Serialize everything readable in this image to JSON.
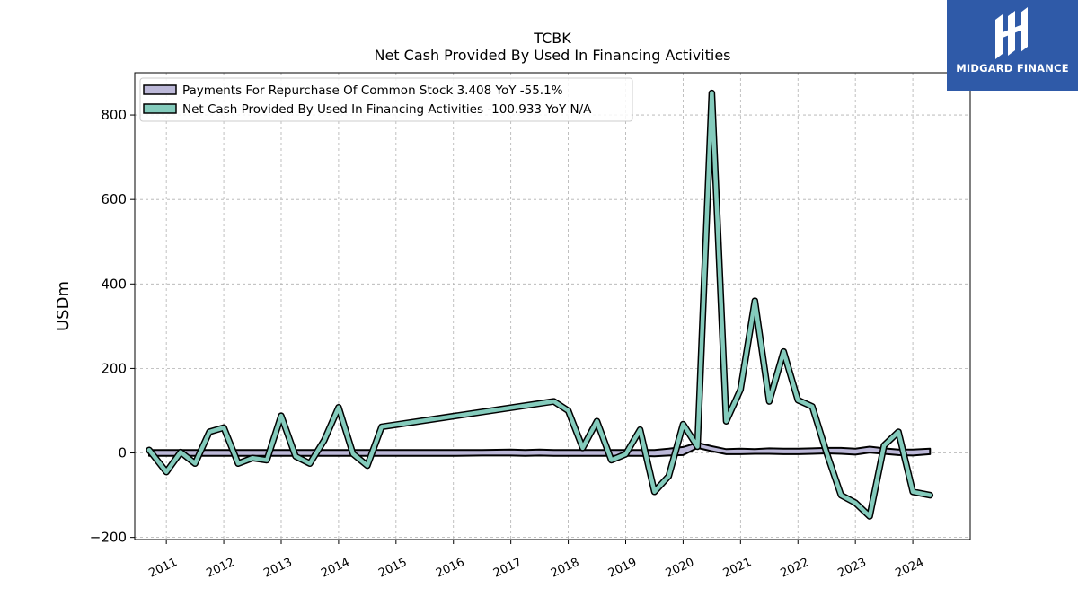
{
  "brand": {
    "name": "MIDGARD FINANCE",
    "color": "#2f5aa8",
    "icon": "midgard-logo-icon"
  },
  "chart_data": {
    "type": "line",
    "title": "TCBK",
    "subtitle": "Net Cash Provided By Used In Financing Activities",
    "xlabel": "",
    "ylabel": "USDm",
    "xlim": [
      2010.45,
      2025.0
    ],
    "ylim": [
      -205,
      900
    ],
    "yticks": [
      -200,
      0,
      200,
      400,
      600,
      800
    ],
    "ytick_labels": [
      "−200",
      "0",
      "200",
      "400",
      "600",
      "800"
    ],
    "xticks": [
      2011,
      2012,
      2013,
      2014,
      2015,
      2016,
      2017,
      2018,
      2019,
      2020,
      2021,
      2022,
      2023,
      2024
    ],
    "xtick_labels": [
      "2011",
      "2012",
      "2013",
      "2014",
      "2015",
      "2016",
      "2017",
      "2018",
      "2019",
      "2020",
      "2021",
      "2022",
      "2023",
      "2024"
    ],
    "grid": true,
    "legend_position": "top-left",
    "series": [
      {
        "name": "Payments For Repurchase Of Common Stock",
        "legend_label": "Payments For Repurchase Of Common Stock  3.408 YoY -55.1%",
        "color": "#bcb8d8",
        "x": [
          2010.7,
          2011.0,
          2011.25,
          2011.5,
          2011.75,
          2012.0,
          2012.25,
          2012.5,
          2012.75,
          2013.0,
          2013.25,
          2013.5,
          2013.75,
          2014.0,
          2014.25,
          2014.5,
          2014.75,
          2015.5,
          2016.0,
          2016.5,
          2017.0,
          2017.25,
          2017.5,
          2017.75,
          2018.0,
          2018.25,
          2018.5,
          2018.75,
          2019.0,
          2019.25,
          2019.5,
          2019.75,
          2020.0,
          2020.25,
          2020.5,
          2020.75,
          2021.0,
          2021.25,
          2021.5,
          2021.75,
          2022.0,
          2022.25,
          2022.5,
          2022.75,
          2023.0,
          2023.25,
          2023.5,
          2023.75,
          2024.0,
          2024.3
        ],
        "upper": [
          7,
          7,
          7,
          7,
          7,
          7,
          7,
          7,
          7,
          7,
          7,
          7,
          7,
          7,
          7,
          7,
          7,
          7,
          7,
          7,
          8,
          7,
          8,
          7,
          7,
          7,
          7,
          7,
          7,
          7,
          7,
          10,
          14,
          24,
          16,
          9,
          10,
          9,
          11,
          10,
          10,
          11,
          12,
          12,
          10,
          15,
          11,
          8,
          8,
          10
        ],
        "lower": [
          -7,
          -7,
          -7,
          -7,
          -7,
          -7,
          -7,
          -7,
          -7,
          -7,
          -7,
          -7,
          -7,
          -7,
          -7,
          -7,
          -7,
          -7,
          -7,
          -6,
          -6,
          -7,
          -6,
          -7,
          -7,
          -7,
          -7,
          -7,
          -7,
          -7,
          -8,
          -6,
          -5,
          12,
          4,
          -3,
          -3,
          -2,
          -2,
          -3,
          -3,
          -2,
          -1,
          -2,
          -4,
          1,
          -2,
          -5,
          -6,
          -3
        ]
      },
      {
        "name": "Net Cash Provided By Used In Financing Activities",
        "legend_label": "Net Cash Provided By Used In Financing Activities  -100.933 YoY N/A",
        "color": "#84cbbc",
        "x": [
          2010.7,
          2011.0,
          2011.25,
          2011.5,
          2011.75,
          2012.0,
          2012.25,
          2012.5,
          2012.75,
          2013.0,
          2013.25,
          2013.5,
          2013.75,
          2014.0,
          2014.25,
          2014.5,
          2014.75,
          2017.75,
          2018.0,
          2018.25,
          2018.5,
          2018.75,
          2019.0,
          2019.25,
          2019.5,
          2019.75,
          2020.0,
          2020.25,
          2020.5,
          2020.75,
          2021.0,
          2021.25,
          2021.5,
          2021.75,
          2022.0,
          2022.25,
          2022.5,
          2022.75,
          2023.0,
          2023.25,
          2023.5,
          2023.75,
          2024.0,
          2024.3
        ],
        "values": [
          7,
          -45,
          2,
          -25,
          50,
          60,
          -25,
          -12,
          -17,
          88,
          -8,
          -25,
          30,
          108,
          -2,
          -30,
          62,
          122,
          100,
          12,
          75,
          -17,
          -3,
          55,
          -92,
          -55,
          68,
          15,
          852,
          75,
          150,
          360,
          122,
          240,
          125,
          110,
          0,
          -100,
          -118,
          -150,
          18,
          50,
          -92,
          -100
        ]
      }
    ]
  }
}
